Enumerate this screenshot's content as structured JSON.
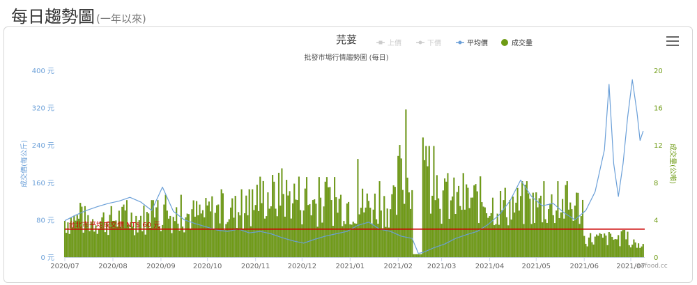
{
  "page": {
    "title": "每日趨勢圖",
    "subtitle": "(一年以來)"
  },
  "chart_data": {
    "type": "bar",
    "title": "芫荽",
    "subtitle": "批發市場行情趨勢圖 (每日)",
    "legend": {
      "placement": "top-center",
      "items": [
        {
          "name": "上價",
          "color": "#cccccc",
          "active": false
        },
        {
          "name": "下價",
          "color": "#cccccc",
          "active": false
        },
        {
          "name": "平均價",
          "color": "#6a9fd8",
          "active": true
        },
        {
          "name": "成交量",
          "color": "#6e9b14",
          "active": true
        }
      ]
    },
    "x_ticks": [
      "2020/07",
      "2020/08",
      "2020/09",
      "2020/10",
      "2020/11",
      "2020/12",
      "2021/01",
      "2021/02",
      "2021/03",
      "2021/04",
      "2021/05",
      "2021/06",
      "2021/07"
    ],
    "y_left": {
      "label": "成交價(每公斤)",
      "ticks": [
        "0 元",
        "80 元",
        "160 元",
        "240 元",
        "320 元",
        "400 元"
      ],
      "range": [
        0,
        400
      ],
      "color": "#6a9fd8"
    },
    "y_right": {
      "label": "成交量(公噸)",
      "ticks": [
        "0",
        "4",
        "8",
        "12",
        "16",
        "20"
      ],
      "range": [
        0,
        20
      ],
      "color": "#6e9b14"
    },
    "grid": false,
    "reference_line": {
      "value": 60,
      "label": "台北市平均成交價 NT$ 60 元",
      "color": "#cc0000"
    },
    "watermark": "twfood.cc",
    "series": [
      {
        "name": "平均價",
        "type": "line",
        "axis": "left",
        "color": "#6a9fd8",
        "points": [
          [
            "2020/07/01",
            78
          ],
          [
            "2020/07/08",
            90
          ],
          [
            "2020/07/15",
            100
          ],
          [
            "2020/07/22",
            108
          ],
          [
            "2020/07/29",
            115
          ],
          [
            "2020/08/05",
            120
          ],
          [
            "2020/08/12",
            128
          ],
          [
            "2020/08/19",
            118
          ],
          [
            "2020/08/26",
            100
          ],
          [
            "2020/09/02",
            150
          ],
          [
            "2020/09/09",
            98
          ],
          [
            "2020/09/16",
            80
          ],
          [
            "2020/09/23",
            72
          ],
          [
            "2020/09/30",
            65
          ],
          [
            "2020/10/07",
            58
          ],
          [
            "2020/10/14",
            55
          ],
          [
            "2020/10/21",
            60
          ],
          [
            "2020/10/28",
            52
          ],
          [
            "2020/11/04",
            55
          ],
          [
            "2020/11/11",
            50
          ],
          [
            "2020/11/18",
            42
          ],
          [
            "2020/11/25",
            35
          ],
          [
            "2020/12/02",
            30
          ],
          [
            "2020/12/09",
            38
          ],
          [
            "2020/12/16",
            45
          ],
          [
            "2020/12/23",
            50
          ],
          [
            "2020/12/30",
            55
          ],
          [
            "2021/01/06",
            68
          ],
          [
            "2021/01/13",
            75
          ],
          [
            "2021/01/20",
            60
          ],
          [
            "2021/01/27",
            55
          ],
          [
            "2021/02/03",
            45
          ],
          [
            "2021/02/10",
            40
          ],
          [
            "2021/02/14",
            8
          ],
          [
            "2021/02/17",
            10
          ],
          [
            "2021/02/24",
            20
          ],
          [
            "2021/03/03",
            28
          ],
          [
            "2021/03/10",
            40
          ],
          [
            "2021/03/17",
            48
          ],
          [
            "2021/03/24",
            55
          ],
          [
            "2021/03/31",
            70
          ],
          [
            "2021/04/07",
            90
          ],
          [
            "2021/04/14",
            120
          ],
          [
            "2021/04/21",
            165
          ],
          [
            "2021/04/28",
            130
          ],
          [
            "2021/05/05",
            110
          ],
          [
            "2021/05/12",
            115
          ],
          [
            "2021/05/19",
            95
          ],
          [
            "2021/05/26",
            80
          ],
          [
            "2021/06/02",
            100
          ],
          [
            "2021/06/08",
            140
          ],
          [
            "2021/06/14",
            230
          ],
          [
            "2021/06/17",
            370
          ],
          [
            "2021/06/20",
            200
          ],
          [
            "2021/06/23",
            130
          ],
          [
            "2021/06/26",
            200
          ],
          [
            "2021/06/29",
            300
          ],
          [
            "2021/07/02",
            380
          ],
          [
            "2021/07/05",
            310
          ],
          [
            "2021/07/07",
            250
          ],
          [
            "2021/07/09",
            270
          ]
        ]
      },
      {
        "name": "成交量",
        "type": "bar",
        "axis": "right",
        "color": "#6e9b14",
        "monthly_levels": [
          [
            "2020/07",
            4.0
          ],
          [
            "2020/08",
            4.2
          ],
          [
            "2020/09",
            4.6
          ],
          [
            "2020/10",
            5.0
          ],
          [
            "2020/11",
            6.6
          ],
          [
            "2020/12",
            5.9
          ],
          [
            "2021/01",
            5.6
          ],
          [
            "2021/02",
            8.2
          ],
          [
            "2021/03",
            6.2
          ],
          [
            "2021/04",
            5.6
          ],
          [
            "2021/05",
            5.6
          ],
          [
            "2021/06",
            2.0
          ],
          [
            "2021/07",
            1.3
          ]
        ],
        "peaks": [
          [
            "2021/02/06",
            15.8
          ],
          [
            "2021/02/17",
            12.8
          ],
          [
            "2021/02/02",
            12.0
          ],
          [
            "2021/01/06",
            10.5
          ],
          [
            "2020/11/18",
            9.5
          ]
        ]
      }
    ]
  }
}
